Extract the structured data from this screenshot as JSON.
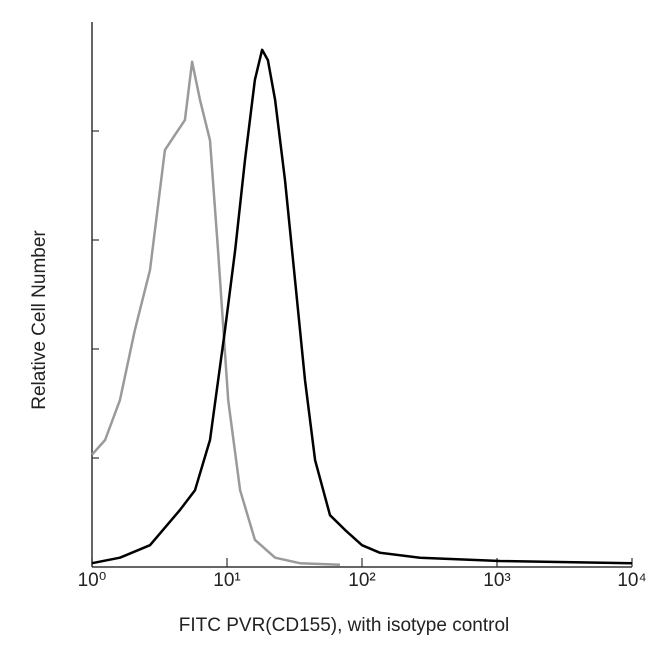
{
  "chart_data": {
    "type": "line",
    "xlabel": "FITC PVR(CD155),  with isotype control",
    "ylabel": "Relative Cell Number",
    "xscale": "log",
    "xlim": [
      1,
      10000
    ],
    "xticks": [
      {
        "value": 1,
        "label": "10⁰"
      },
      {
        "value": 10,
        "label": "10¹"
      },
      {
        "value": 100,
        "label": "10²"
      },
      {
        "value": 1000,
        "label": "10³"
      },
      {
        "value": 10000,
        "label": "10⁴"
      }
    ],
    "ylim": [
      0,
      100
    ],
    "yticks": [
      20,
      40,
      60,
      80
    ],
    "series": [
      {
        "color": "#9a9a9a",
        "x": [
          1,
          1.25,
          1.61,
          2.08,
          2.69,
          3.47,
          4.12,
          4.88,
          5.51,
          6.31,
          7.48,
          8.58,
          10.2,
          12.5,
          16.1,
          22.7,
          34.7,
          68.7
        ],
        "values": [
          20.6,
          23.3,
          30.6,
          43.5,
          54.5,
          76.5,
          79.3,
          82.0,
          92.7,
          85.7,
          78.3,
          58.2,
          30.6,
          14.1,
          5.0,
          1.7,
          0.7,
          0.4
        ]
      },
      {
        "color": "#000000",
        "x": [
          1,
          1.61,
          2.69,
          4.49,
          5.79,
          7.48,
          9.67,
          11.5,
          13.6,
          16.1,
          18.2,
          20.1,
          22.7,
          26.9,
          31.9,
          37.8,
          44.9,
          57.9,
          74.8,
          100,
          136,
          269,
          1052,
          10000
        ],
        "values": [
          0.7,
          1.7,
          4.0,
          10.5,
          14.1,
          23.3,
          43.5,
          58.2,
          74.7,
          89.4,
          94.9,
          93.0,
          85.7,
          71.0,
          52.7,
          34.3,
          19.6,
          9.5,
          6.8,
          4.0,
          2.6,
          1.7,
          1.1,
          0.7
        ]
      }
    ]
  }
}
